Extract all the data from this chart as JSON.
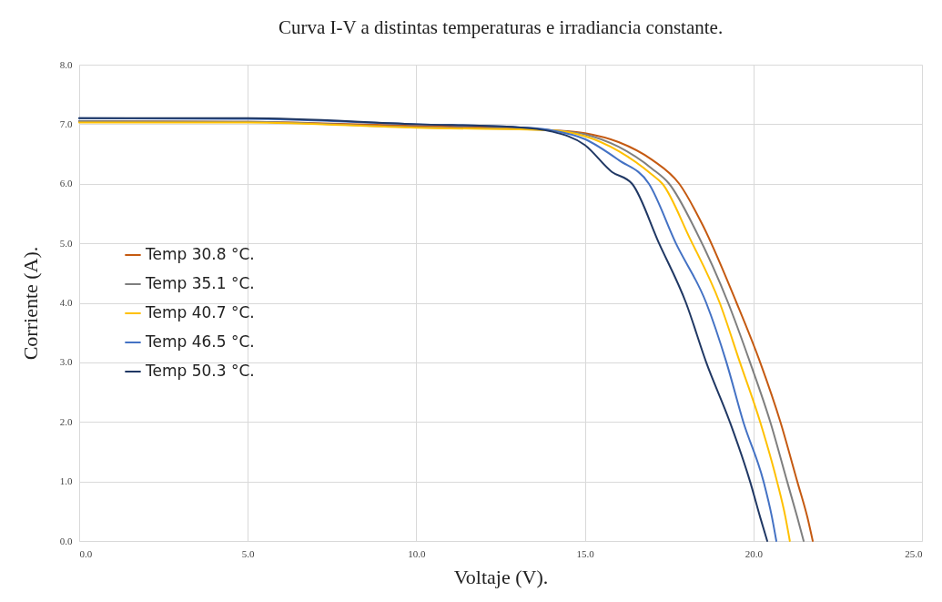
{
  "chart_data": {
    "type": "line",
    "title": "Curva I-V a distintas temperaturas e irradiancia constante.",
    "xlabel": "Voltaje (V).",
    "ylabel": "Corriente (A).",
    "xlim": [
      0,
      25
    ],
    "ylim": [
      0,
      8
    ],
    "xticks": [
      {
        "value": 0,
        "label": "0.0"
      },
      {
        "value": 5,
        "label": "5.0"
      },
      {
        "value": 10,
        "label": "10.0"
      },
      {
        "value": 15,
        "label": "15.0"
      },
      {
        "value": 20,
        "label": "20.0"
      },
      {
        "value": 25,
        "label": "25.0"
      }
    ],
    "yticks": [
      {
        "value": 0,
        "label": "0.0"
      },
      {
        "value": 1,
        "label": "1.0"
      },
      {
        "value": 2,
        "label": "2.0"
      },
      {
        "value": 3,
        "label": "3.0"
      },
      {
        "value": 4,
        "label": "4.0"
      },
      {
        "value": 5,
        "label": "5.0"
      },
      {
        "value": 6,
        "label": "6.0"
      },
      {
        "value": 7,
        "label": "7.0"
      },
      {
        "value": 8,
        "label": "8.0"
      }
    ],
    "grid": true,
    "legend": "bottom left",
    "marker": "none",
    "line_style": "solid",
    "series": [
      {
        "name": "Temp 30.8 °C.",
        "color": "#c55a11",
        "x": [
          0,
          5,
          10,
          13,
          14,
          15,
          16,
          17,
          17.8,
          18.5,
          19.5,
          20.2,
          20.8,
          21.3,
          21.6,
          21.76
        ],
        "values": [
          7.05,
          7.04,
          6.97,
          6.93,
          6.9,
          6.85,
          6.7,
          6.4,
          6.0,
          5.3,
          4.0,
          3.0,
          2.0,
          1.0,
          0.4,
          0
        ]
      },
      {
        "name": "Temp 35.1 °C.",
        "color": "#7f7f7f",
        "x": [
          0,
          5,
          10,
          13,
          14,
          15,
          16,
          17,
          17.5,
          18.3,
          19.25,
          19.9,
          20.5,
          21.0,
          21.3,
          21.49
        ],
        "values": [
          7.05,
          7.04,
          6.95,
          6.92,
          6.9,
          6.83,
          6.62,
          6.25,
          6.0,
          5.2,
          4.0,
          3.0,
          2.0,
          1.0,
          0.4,
          0
        ]
      },
      {
        "name": "Temp 40.7 °C.",
        "color": "#ffc000",
        "x": [
          0,
          5,
          10,
          14,
          15,
          16,
          17,
          17.3,
          18.1,
          19.0,
          19.6,
          20.2,
          20.7,
          20.95,
          21.08
        ],
        "values": [
          7.03,
          7.03,
          6.94,
          6.9,
          6.8,
          6.55,
          6.15,
          6.0,
          5.1,
          4.0,
          3.0,
          2.0,
          1.0,
          0.4,
          0
        ]
      },
      {
        "name": "Temp 46.5 °C.",
        "color": "#4472c4",
        "x": [
          0,
          5,
          10,
          13,
          14,
          15,
          16,
          16.9,
          17.7,
          18.6,
          19.2,
          19.7,
          20.3,
          20.55,
          20.68
        ],
        "values": [
          7.1,
          7.09,
          7.0,
          6.95,
          6.9,
          6.75,
          6.4,
          6.0,
          5.0,
          4.0,
          3.0,
          2.0,
          1.0,
          0.4,
          0
        ]
      },
      {
        "name": "Temp 50.3 °C.",
        "color": "#203864",
        "x": [
          0,
          5,
          10,
          13,
          14,
          15,
          15.8,
          16.4,
          17.2,
          18.0,
          18.6,
          19.3,
          19.9,
          20.2,
          20.41
        ],
        "values": [
          7.1,
          7.1,
          7.0,
          6.95,
          6.88,
          6.65,
          6.2,
          6.0,
          5.0,
          4.0,
          3.0,
          2.0,
          1.0,
          0.4,
          0
        ]
      }
    ]
  }
}
